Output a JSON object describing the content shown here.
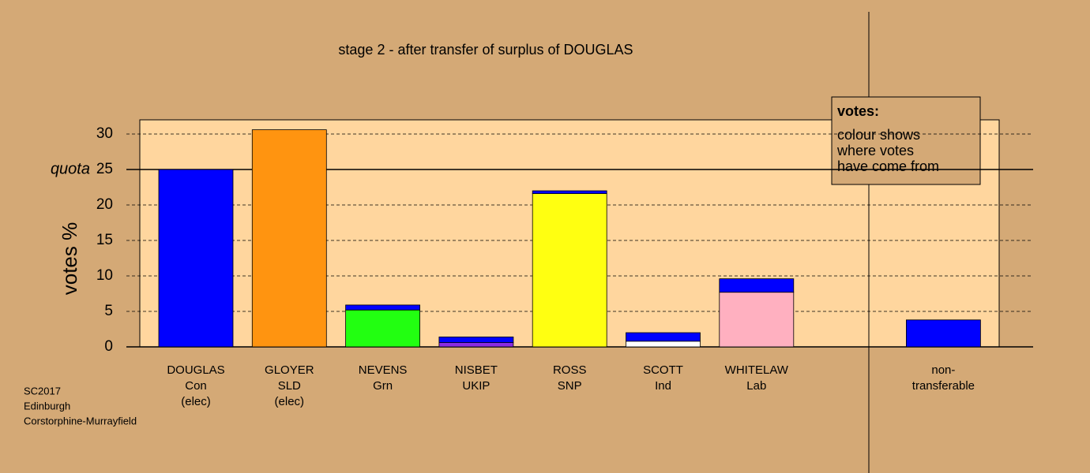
{
  "chart_data": {
    "type": "stacked_bar",
    "title": "stage 2 - after transfer of surplus of DOUGLAS",
    "y_label": "votes %",
    "categories": [
      [
        "DOUGLAS",
        "Con",
        "(elec)"
      ],
      [
        "GLOYER",
        "SLD",
        "(elec)"
      ],
      [
        "NEVENS",
        "Grn"
      ],
      [
        "NISBET",
        "UKIP"
      ],
      [
        "ROSS",
        "SNP"
      ],
      [
        "SCOTT",
        "Ind"
      ],
      [
        "WHITELAW",
        "Lab"
      ],
      [
        "non-",
        "transferable"
      ]
    ],
    "series": [
      {
        "colors": [
          "#0000ff",
          "#ff9410",
          "#22ff11",
          "#8a2be2",
          "#ffff11",
          "#ffffff",
          "#ffb0c0",
          null
        ],
        "values": [
          25,
          30.6,
          5.2,
          0.6,
          21.6,
          0.8,
          7.7,
          null
        ]
      },
      {
        "color": "#0000ff",
        "values": [
          0,
          0,
          0.7,
          0.8,
          0.4,
          1.2,
          1.9,
          3.8
        ]
      }
    ],
    "ylim": [
      0,
      32
    ],
    "yticks": [
      0,
      5,
      10,
      15,
      20,
      25,
      30
    ],
    "grid": true,
    "quota": {
      "label": "quota",
      "value": 25
    },
    "legend": {
      "title": "votes:",
      "lines": [
        "colour shows",
        "where votes",
        "have come from"
      ]
    },
    "footer": [
      "SC2017",
      "Edinburgh",
      "Corstorphine-Murrayfield"
    ]
  }
}
